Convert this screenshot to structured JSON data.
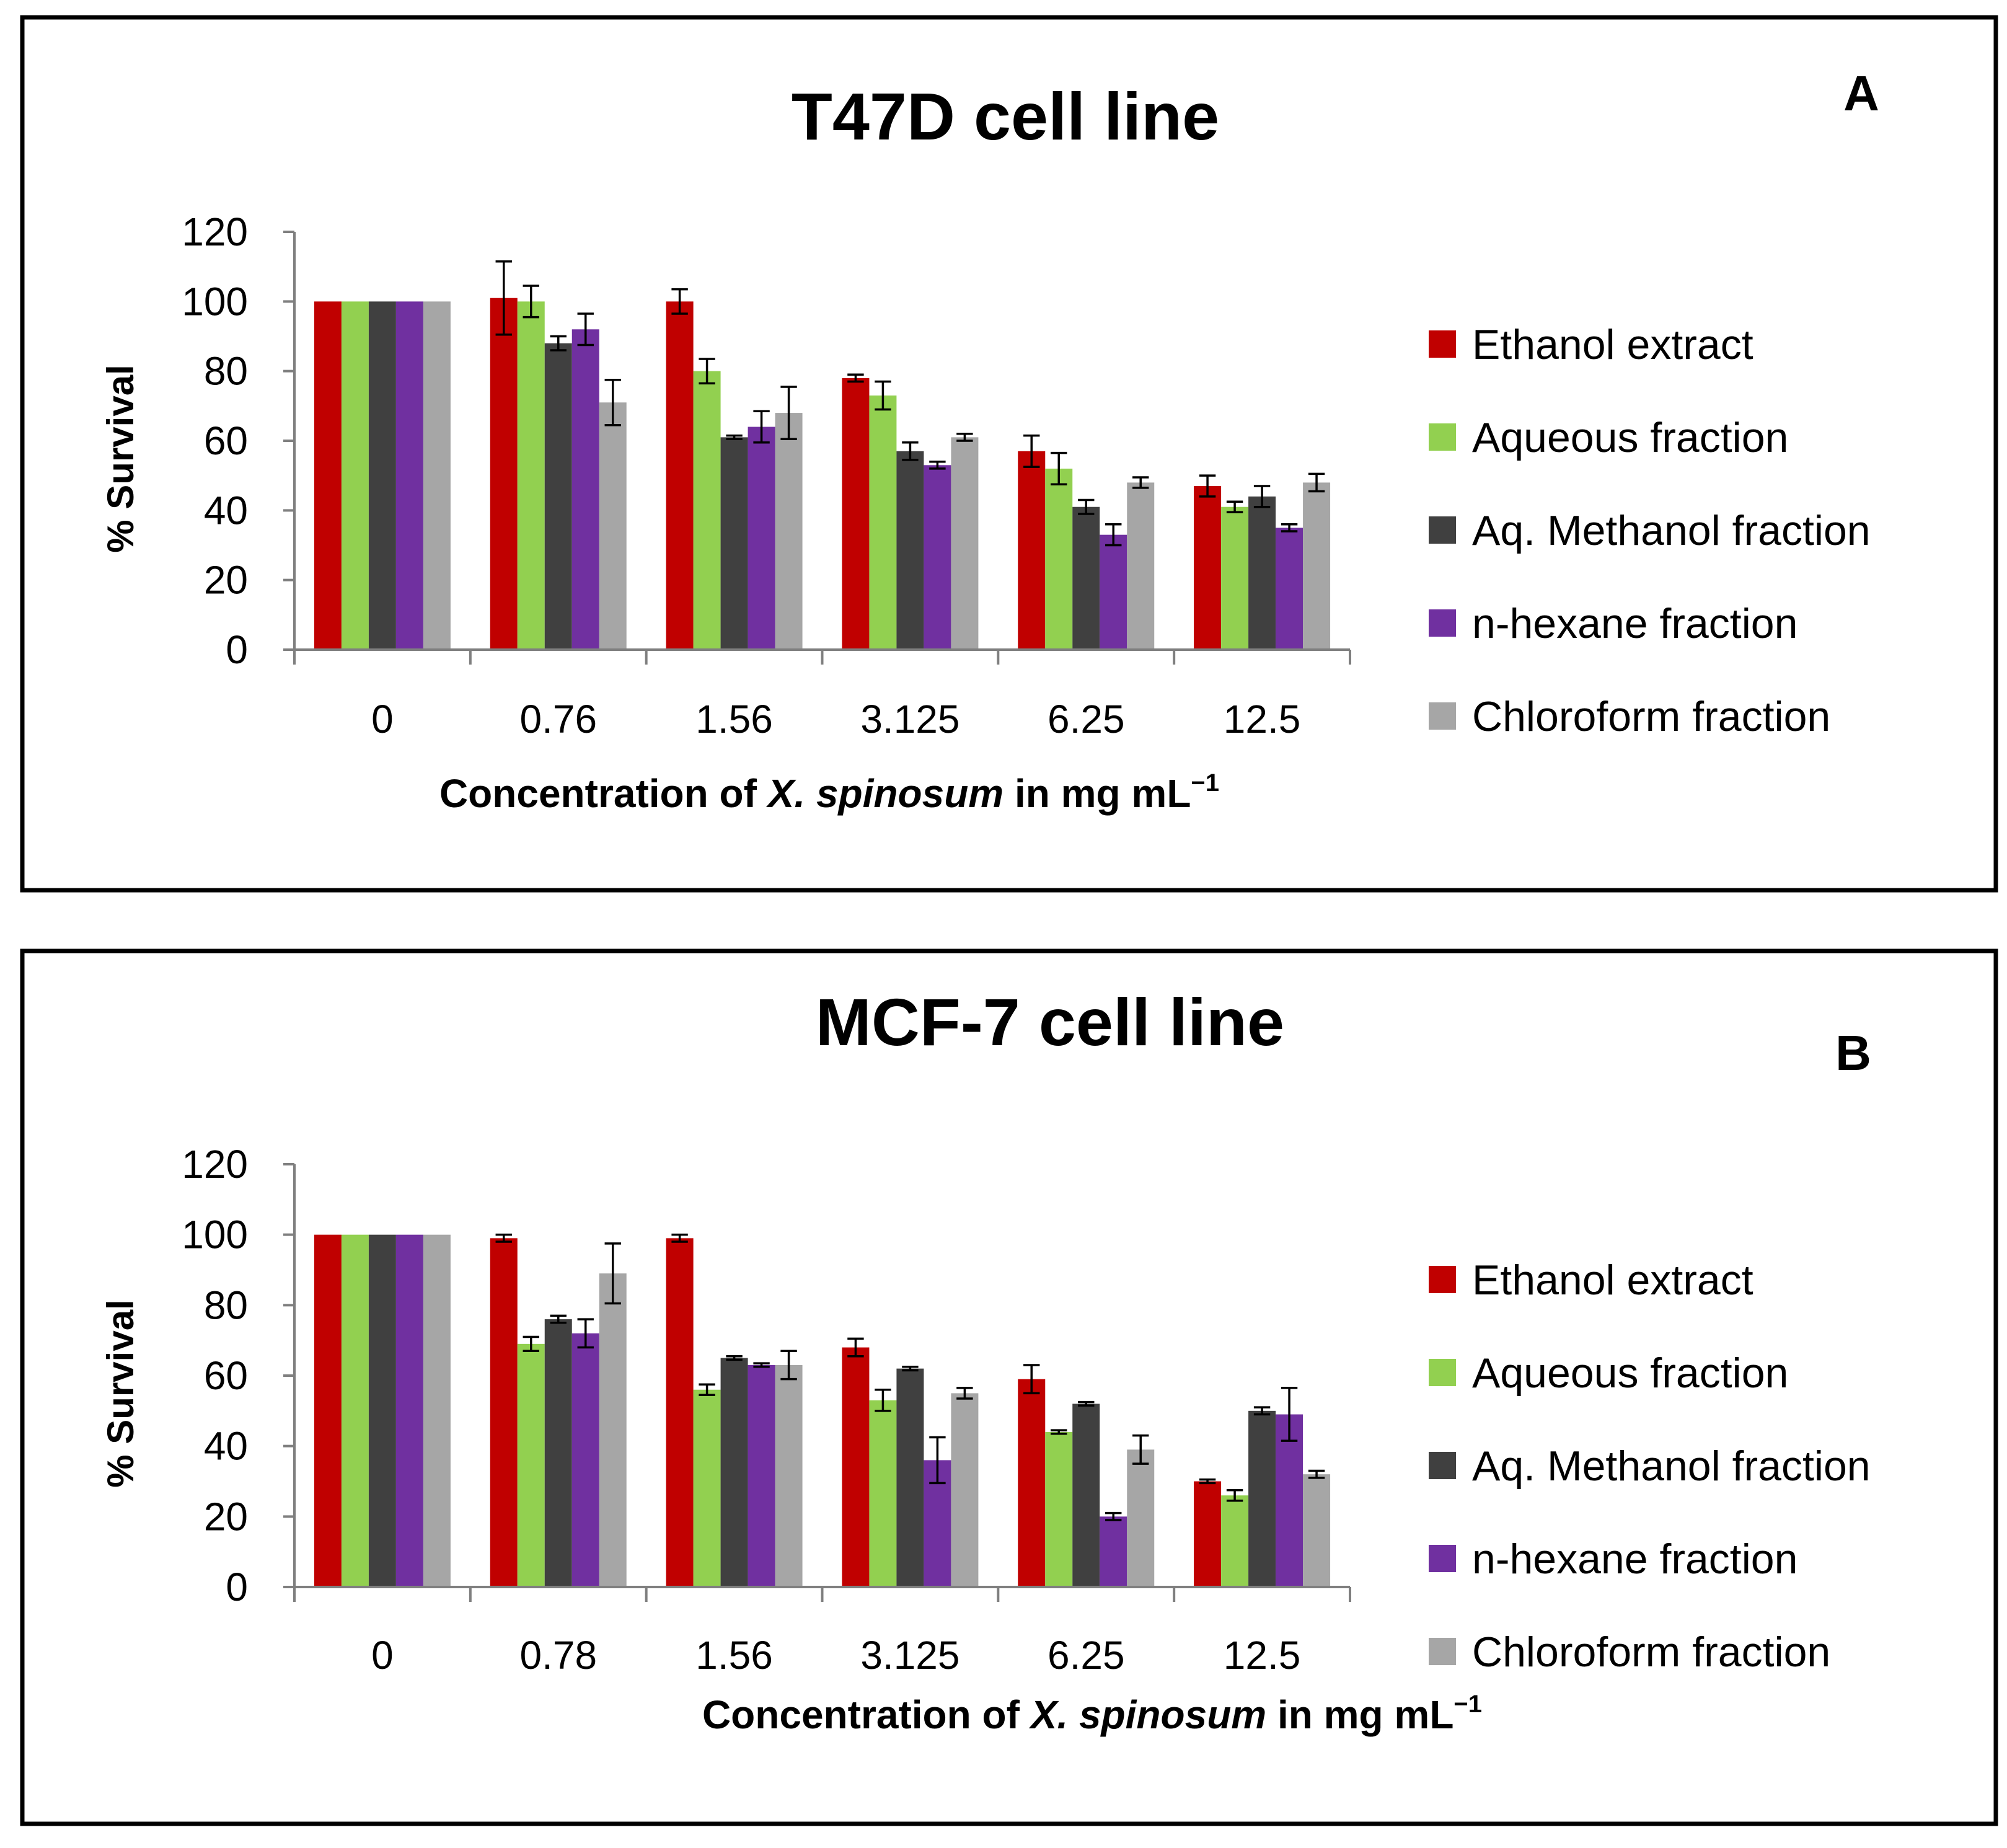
{
  "chart_data": [
    {
      "type": "bar",
      "panel_label": "A",
      "title": "T47D cell line",
      "ylabel": "% Survival",
      "xlabel_parts": [
        "Concentration of ",
        "X. spinosum",
        " in mg mL",
        "−1"
      ],
      "ylim": [
        0,
        120
      ],
      "yticks": [
        0,
        20,
        40,
        60,
        80,
        100,
        120
      ],
      "categories": [
        "0",
        "0.76",
        "1.56",
        "3.125",
        "6.25",
        "12.5"
      ],
      "series": [
        {
          "name": "Ethanol extract",
          "color": "#c00000",
          "values": [
            100,
            101,
            100,
            78,
            57,
            47
          ],
          "errors": [
            0,
            10.5,
            3.5,
            1,
            4.5,
            3
          ]
        },
        {
          "name": "Aqueous fraction",
          "color": "#92d050",
          "values": [
            100,
            100,
            80,
            73,
            52,
            41
          ],
          "errors": [
            0,
            4.5,
            3.5,
            4,
            4.5,
            1.5
          ]
        },
        {
          "name": "Aq. Methanol fraction",
          "color": "#404040",
          "values": [
            100,
            88,
            61,
            57,
            41,
            44
          ],
          "errors": [
            0,
            2,
            0.5,
            2.5,
            2,
            3
          ]
        },
        {
          "name": "n-hexane fraction",
          "color": "#7030a0",
          "values": [
            100,
            92,
            64,
            53,
            33,
            35
          ],
          "errors": [
            0,
            4.5,
            4.5,
            1,
            3,
            1
          ]
        },
        {
          "name": "Chloroform fraction",
          "color": "#a6a6a6",
          "values": [
            100,
            71,
            68,
            61,
            48,
            48
          ],
          "errors": [
            0,
            6.5,
            7.5,
            1,
            1.5,
            2.5
          ]
        }
      ]
    },
    {
      "type": "bar",
      "panel_label": "B",
      "title": "MCF-7 cell line",
      "ylabel": "% Survival",
      "xlabel_parts": [
        "Concentration of ",
        "X. spinosum",
        " in mg mL",
        "−1"
      ],
      "ylim": [
        0,
        120
      ],
      "yticks": [
        0,
        20,
        40,
        60,
        80,
        100,
        120
      ],
      "categories": [
        "0",
        "0.78",
        "1.56",
        "3.125",
        "6.25",
        "12.5"
      ],
      "series": [
        {
          "name": "Ethanol extract",
          "color": "#c00000",
          "values": [
            100,
            99,
            99,
            68,
            59,
            30
          ],
          "errors": [
            0,
            1,
            1,
            2.5,
            4,
            0.5
          ]
        },
        {
          "name": "Aqueous fraction",
          "color": "#92d050",
          "values": [
            100,
            69,
            56,
            53,
            44,
            26
          ],
          "errors": [
            0,
            2,
            1.5,
            3,
            0.5,
            1.5
          ]
        },
        {
          "name": "Aq. Methanol fraction",
          "color": "#404040",
          "values": [
            100,
            76,
            65,
            62,
            52,
            50
          ],
          "errors": [
            0,
            1,
            0.5,
            0.5,
            0.5,
            1
          ]
        },
        {
          "name": "n-hexane fraction",
          "color": "#7030a0",
          "values": [
            100,
            72,
            63,
            36,
            20,
            49
          ],
          "errors": [
            0,
            4,
            0.5,
            6.5,
            1,
            7.5
          ]
        },
        {
          "name": "Chloroform fraction",
          "color": "#a6a6a6",
          "values": [
            100,
            89,
            63,
            55,
            39,
            32
          ],
          "errors": [
            0,
            8.5,
            4,
            1.5,
            4,
            1
          ]
        }
      ]
    }
  ]
}
